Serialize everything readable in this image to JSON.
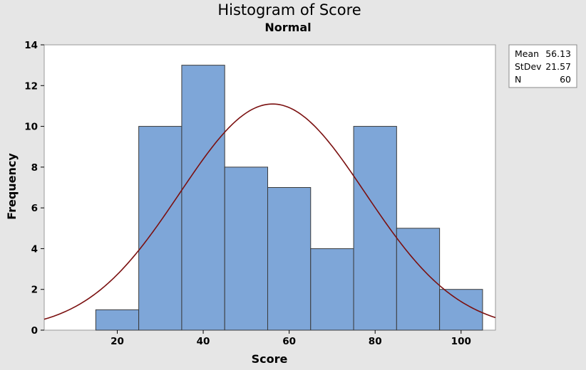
{
  "chart_data": {
    "type": "bar",
    "title": "Histogram of Score",
    "subtitle": "Normal",
    "xlabel": "Score",
    "ylabel": "Frequency",
    "bin_width": 10,
    "bins": [
      {
        "start": 15,
        "end": 25,
        "count": 1
      },
      {
        "start": 25,
        "end": 35,
        "count": 10
      },
      {
        "start": 35,
        "end": 45,
        "count": 13
      },
      {
        "start": 45,
        "end": 55,
        "count": 8
      },
      {
        "start": 55,
        "end": 65,
        "count": 7
      },
      {
        "start": 65,
        "end": 75,
        "count": 4
      },
      {
        "start": 75,
        "end": 85,
        "count": 10
      },
      {
        "start": 85,
        "end": 95,
        "count": 5
      },
      {
        "start": 95,
        "end": 105,
        "count": 2
      }
    ],
    "xlim": [
      3,
      108
    ],
    "ylim": [
      0,
      14
    ],
    "xticks": [
      20,
      40,
      60,
      80,
      100
    ],
    "yticks": [
      0,
      2,
      4,
      6,
      8,
      10,
      12,
      14
    ],
    "fit": {
      "distribution": "Normal",
      "mean": 56.13,
      "stdev": 21.57,
      "n": 60
    },
    "legend_position": "top-right",
    "legend": [
      {
        "label": "Mean",
        "value": "56.13"
      },
      {
        "label": "StDev",
        "value": "21.57"
      },
      {
        "label": "N",
        "value": "60"
      }
    ],
    "colors": {
      "bar": "#7ea6d8",
      "curve": "#7b1010",
      "background": "#e6e6e6",
      "plot": "#ffffff"
    }
  }
}
